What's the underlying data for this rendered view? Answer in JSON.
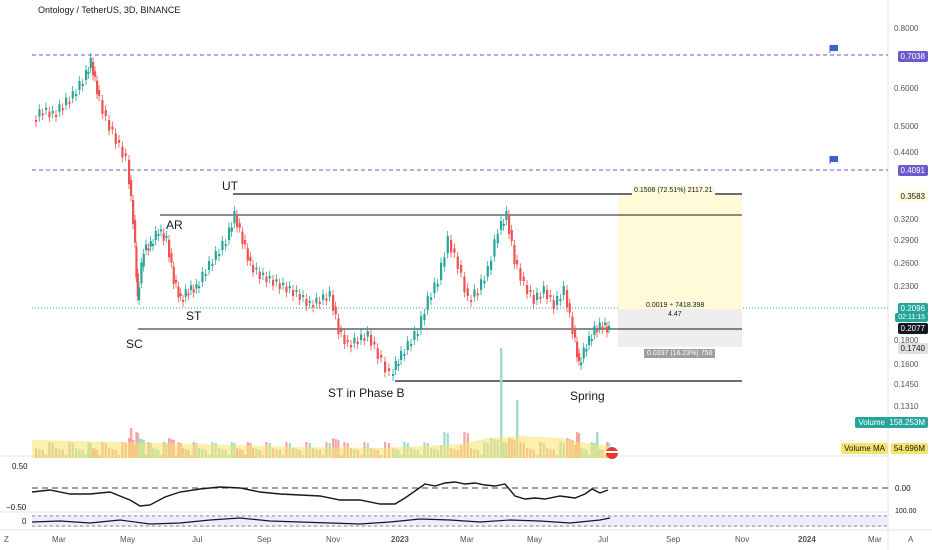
{
  "header": {
    "title": "Ontology / TetherUS, 3D, BINANCE"
  },
  "price_axis": [
    "0.8000",
    "0.6000",
    "0.5000",
    "0.4400",
    "0.3200",
    "0.2900",
    "0.2600",
    "0.2300",
    "0.1800",
    "0.1600",
    "0.1450",
    "0.1310"
  ],
  "price_boxes": {
    "top_line": "0.7038",
    "upper_line": "0.4091",
    "target": "0.3583",
    "current": "0.2096",
    "countdown": "02:11:15",
    "last": "0.2077",
    "stop": "0.1740"
  },
  "volume": {
    "label": "Volume",
    "value": "158.253M",
    "ma_label": "Volume MA",
    "ma_value": "54.696M"
  },
  "oscillator": {
    "top": "0.50",
    "bottom": "−0.50",
    "right_value": "0.00"
  },
  "lower_panel": {
    "zero": "0",
    "right_value": "100.00"
  },
  "time_axis": [
    "Mar",
    "May",
    "Jul",
    "Sep",
    "Nov",
    "2023",
    "Mar",
    "May",
    "Jul",
    "Sep",
    "Nov",
    "2024",
    "Mar"
  ],
  "axis_icons": {
    "left": "Z",
    "right": "A"
  },
  "annotations": {
    "sc": "SC",
    "ar": "AR",
    "st": "ST",
    "ut": "UT",
    "st_phase_b": "ST in Phase B",
    "spring": "Spring"
  },
  "position_tool": {
    "target_info": "0.1506 (72.51%) 2117.21",
    "center_info": "0.0019 ÷ 7418.398",
    "center_ratio": "4.47",
    "stop_info": "0.0337 (16.23%) 750"
  },
  "colors": {
    "up": "#26a69a",
    "down": "#ef5350",
    "profit": "#fffbd9",
    "loss": "#eeeeee",
    "line_dash": "#6a5acd"
  }
}
